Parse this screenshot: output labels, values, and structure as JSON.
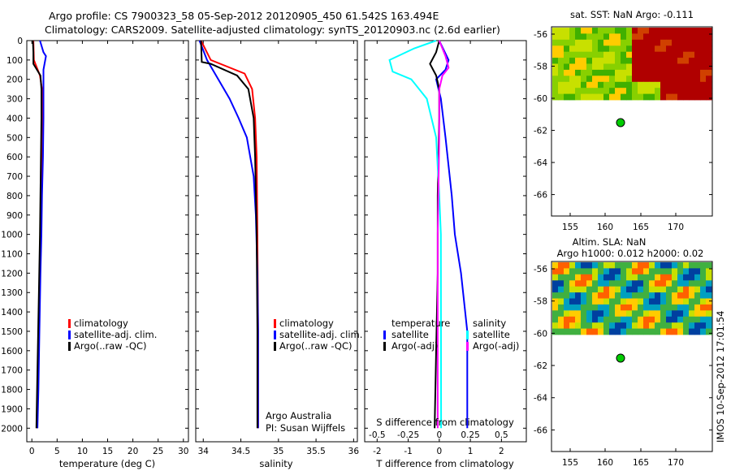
{
  "header": {
    "line1": "Argo profile: CS 7900323_58 05-Sep-2012 20120905_450 61.542S 163.494E",
    "line2": "Climatology: CARS2009. Satellite-adjusted climatology: synTS_20120903.nc (2.6d earlier)"
  },
  "depth_ticks": [
    "0",
    "100",
    "200",
    "300",
    "400",
    "500",
    "600",
    "700",
    "800",
    "900",
    "1000",
    "1100",
    "1200",
    "1300",
    "1400",
    "1500",
    "1600",
    "1700",
    "1800",
    "1900",
    "2000"
  ],
  "side_label": "IMOS 10-Sep-2012 17:01:54",
  "colors": {
    "climatology": "#ff0000",
    "satellite": "#0000ff",
    "argo": "#000000",
    "sat_t": "#00ffff",
    "argo_s": "#ff00ff",
    "marker": "#00cc00"
  },
  "panels": {
    "temperature": {
      "xlabel": "temperature (deg C)",
      "xticks": [
        "0",
        "5",
        "10",
        "15",
        "20",
        "25",
        "30"
      ],
      "legend": [
        "climatology",
        "satellite-adj. clim.",
        "Argo(..raw -QC)"
      ]
    },
    "salinity": {
      "xlabel": "salinity",
      "xticks": [
        "34",
        "34.5",
        "35",
        "35.5",
        "36"
      ],
      "legend": [
        "climatology",
        "satellite-adj. clim.",
        "Argo(..raw -QC)"
      ],
      "note1": "Argo Australia",
      "note2": "PI: Susan Wijffels"
    },
    "difference": {
      "xlabel": "T difference from climatology",
      "xticks": [
        "-2",
        "-1",
        "0",
        "1",
        "2"
      ],
      "top_label": "S difference from climatology",
      "top_ticks": [
        "-0.5",
        "-0.25",
        "0",
        "0.25",
        "0.5"
      ],
      "legend_t_head": "temperature",
      "legend_t": [
        "satellite",
        "Argo(-adj)"
      ],
      "legend_s_head": "salinity",
      "legend_s": [
        "satellite",
        "Argo(-adj)"
      ]
    },
    "sst_map": {
      "title": "sat. SST: NaN Argo: -0.111",
      "yticks": [
        "-56",
        "-58",
        "-60",
        "-62",
        "-64",
        "-66"
      ],
      "xticks": [
        "155",
        "160",
        "165",
        "170"
      ]
    },
    "sla_map": {
      "title1": "Altim. SLA: NaN",
      "title2": "Argo h1000: 0.012 h2000: 0.02",
      "yticks": [
        "-56",
        "-58",
        "-60",
        "-62",
        "-64",
        "-66"
      ],
      "xticks": [
        "155",
        "160",
        "165",
        "170"
      ]
    }
  },
  "chart_data": [
    {
      "type": "line",
      "name": "temperature",
      "xlabel": "temperature (deg C)",
      "ylabel": "",
      "xlim": [
        -1,
        31
      ],
      "ylim": [
        2070,
        0
      ],
      "series": [
        {
          "name": "climatology",
          "x": [
            0.3,
            0.4,
            1.6,
            2.0,
            2.0,
            1.9,
            1.8,
            1.7,
            1.6,
            1.4,
            1.2,
            1.0
          ],
          "y": [
            0,
            100,
            180,
            250,
            400,
            600,
            800,
            1000,
            1200,
            1500,
            1800,
            2000
          ]
        },
        {
          "name": "satellite-adj. clim.",
          "x": [
            1.6,
            2.3,
            2.8,
            2.3,
            2.3,
            2.2,
            2.0,
            1.9,
            1.7,
            1.5,
            1.3,
            1.1
          ],
          "y": [
            0,
            60,
            80,
            150,
            400,
            600,
            800,
            1000,
            1200,
            1500,
            1800,
            2000
          ]
        },
        {
          "name": "Argo(..raw -QC)",
          "x": [
            0.2,
            0.3,
            0.3,
            1.7,
            1.9,
            1.9,
            1.8,
            1.7,
            1.6,
            1.4,
            1.1,
            0.9
          ],
          "y": [
            0,
            60,
            120,
            180,
            250,
            400,
            600,
            800,
            1000,
            1300,
            1700,
            2000
          ]
        }
      ]
    },
    {
      "type": "line",
      "name": "salinity",
      "xlabel": "salinity",
      "xlim": [
        33.9,
        36.05
      ],
      "ylim": [
        2070,
        0
      ],
      "series": [
        {
          "name": "climatology",
          "x": [
            33.97,
            34.1,
            34.55,
            34.65,
            34.69,
            34.71,
            34.72,
            34.73,
            34.73
          ],
          "y": [
            0,
            100,
            170,
            250,
            400,
            600,
            1000,
            1500,
            2000
          ]
        },
        {
          "name": "satellite-adj. clim.",
          "x": [
            33.95,
            34.05,
            34.2,
            34.35,
            34.47,
            34.58,
            34.67,
            34.7,
            34.72,
            34.73,
            34.73
          ],
          "y": [
            0,
            100,
            200,
            300,
            400,
            500,
            700,
            900,
            1200,
            1500,
            2000
          ]
        },
        {
          "name": "Argo(..raw -QC)",
          "x": [
            33.97,
            33.98,
            34.1,
            34.45,
            34.6,
            34.67,
            34.69,
            34.71,
            34.72,
            34.72
          ],
          "y": [
            0,
            110,
            120,
            180,
            250,
            400,
            600,
            1000,
            1500,
            2000
          ]
        }
      ]
    },
    {
      "type": "line",
      "name": "difference",
      "xlabel": "T difference from climatology",
      "top_axis": "S difference from climatology",
      "xlim": [
        -2.4,
        2.8
      ],
      "ylim": [
        2070,
        0
      ],
      "series": [
        {
          "name": "temperature satellite",
          "x": [
            0,
            0.3,
            0.2,
            -0.1,
            0.05,
            0.2,
            0.4,
            0.5,
            0.7,
            0.9,
            0.9,
            0.9
          ],
          "y": [
            0,
            100,
            150,
            200,
            300,
            500,
            800,
            1000,
            1200,
            1500,
            1800,
            2000
          ]
        },
        {
          "name": "temperature Argo(-adj)",
          "x": [
            0,
            -0.1,
            -0.3,
            -0.1,
            0,
            0,
            -0.05,
            -0.05,
            -0.1,
            -0.15
          ],
          "y": [
            0,
            60,
            120,
            180,
            250,
            400,
            800,
            1200,
            1600,
            2000
          ]
        },
        {
          "name": "salinity satellite",
          "x": [
            -0.1,
            -0.8,
            -1.6,
            -1.5,
            -0.9,
            -0.4,
            -0.1,
            0.0,
            0.05,
            0.06
          ],
          "y": [
            0,
            40,
            100,
            160,
            200,
            300,
            500,
            800,
            1000,
            2000
          ]
        },
        {
          "name": "salinity Argo(-adj)",
          "x": [
            0,
            0.2,
            0.3,
            0.1,
            0,
            0,
            -0.05,
            -0.05,
            -0.05
          ],
          "y": [
            0,
            80,
            140,
            180,
            250,
            500,
            1000,
            1500,
            2000
          ]
        }
      ]
    }
  ]
}
